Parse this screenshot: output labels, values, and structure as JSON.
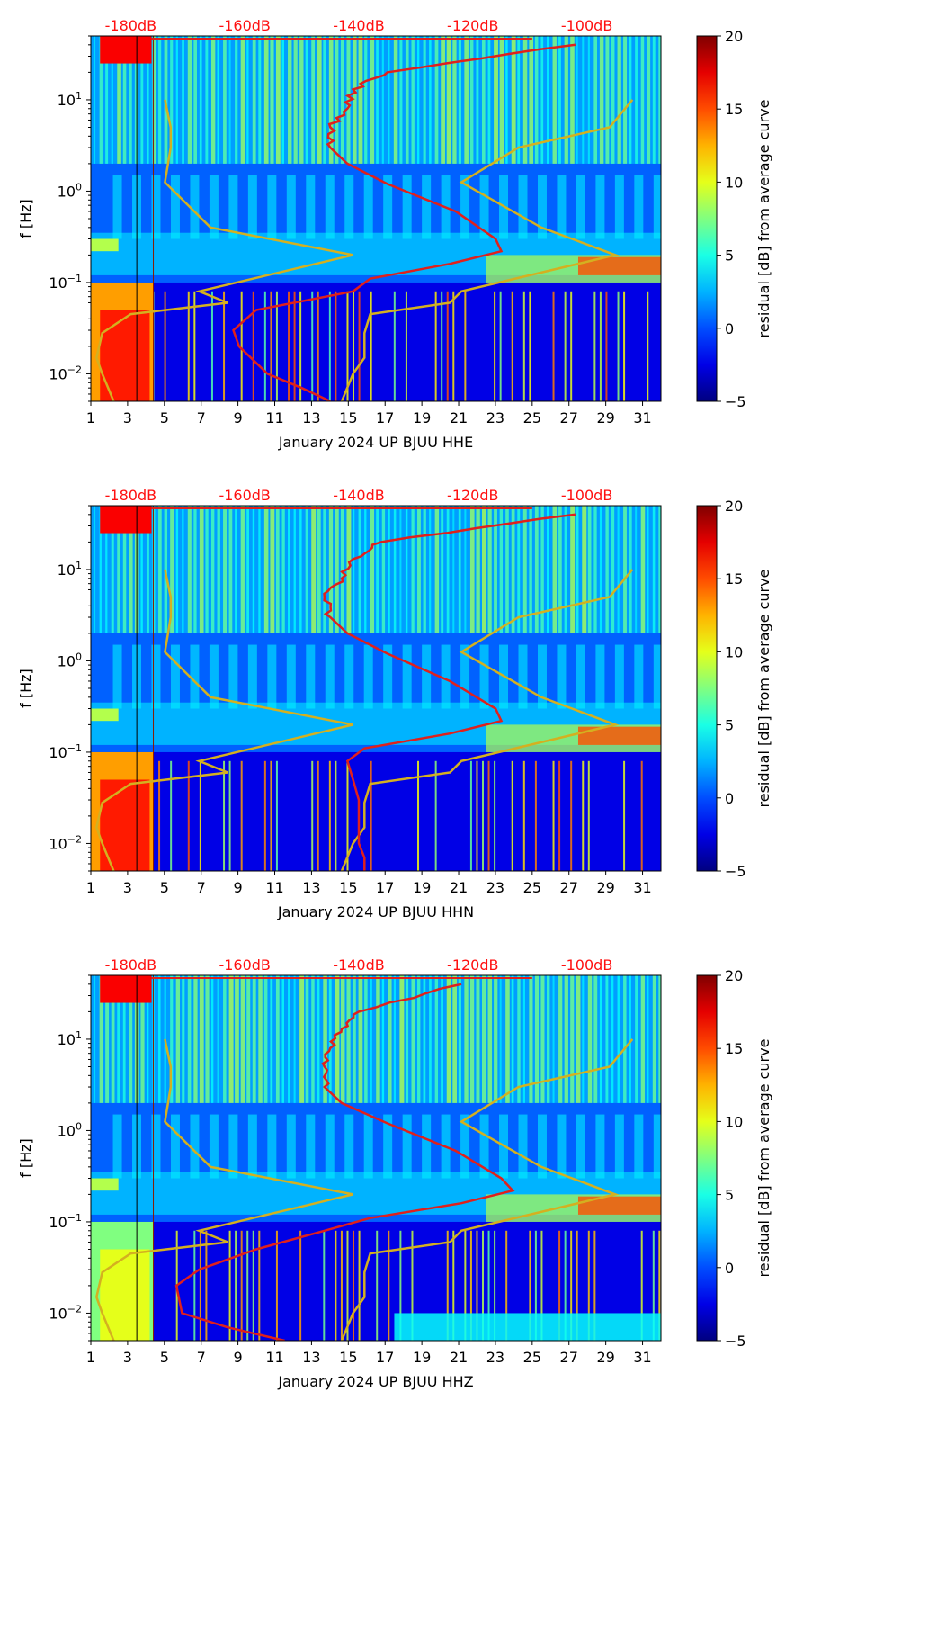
{
  "colors": {
    "model_line": "#d4b020",
    "median_line": "#e0201c",
    "top_labels": "#ff1010",
    "vline": "#8b1a00"
  },
  "colorbar": {
    "label": "residual [dB] from average curve",
    "ticks": [
      "20",
      "15",
      "10",
      "5",
      "0",
      "−5"
    ],
    "range": [
      -5,
      20
    ],
    "colormap": "jet"
  },
  "chart_data": [
    {
      "type": "heatmap",
      "title": "",
      "xlabel": "January 2024 UP BJUU  HHE",
      "ylabel": "f [Hz]",
      "x_ticks": [
        "1",
        "3",
        "5",
        "7",
        "9",
        "11",
        "13",
        "15",
        "17",
        "19",
        "21",
        "23",
        "25",
        "27",
        "29",
        "31"
      ],
      "x_range": [
        1,
        32
      ],
      "y_scale": "log",
      "y_range": [
        0.005,
        50
      ],
      "y_ticks": [
        {
          "base": "10",
          "exp": "1"
        },
        {
          "base": "10",
          "exp": "0"
        },
        {
          "base": "10",
          "exp": "−1"
        },
        {
          "base": "10",
          "exp": "−2"
        }
      ],
      "top_axis_labels": [
        "-180dB",
        "-160dB",
        "-140dB",
        "-120dB",
        "-100dB"
      ],
      "top_axis_db": [
        -180,
        -160,
        -140,
        -120,
        -100
      ],
      "db_range": [
        -187,
        -87
      ],
      "series": [
        {
          "name": "noise model bounds (dB)",
          "freqs": [
            10,
            5,
            3,
            1.25,
            0.4,
            0.2,
            0.08,
            0.06,
            0.045,
            0.028,
            0.015,
            0.01,
            0.005
          ],
          "left_db": [
            -174,
            -173,
            -173,
            -174,
            -166,
            -141,
            -168,
            -163,
            -180,
            -185,
            -186,
            -185,
            -183
          ],
          "right_db": [
            -92,
            -96,
            -112,
            -122,
            -108,
            -95,
            -122,
            -124,
            -138,
            -139,
            -139,
            -141,
            -143
          ]
        },
        {
          "name": "median PSD (dB)",
          "freqs": [
            40,
            20,
            13,
            8,
            5,
            3,
            2,
            1.2,
            0.6,
            0.3,
            0.22,
            0.16,
            0.11,
            0.08,
            0.05,
            0.03,
            0.02,
            0.01,
            0.007,
            0.005
          ],
          "db": [
            -102,
            -135,
            -141,
            -142,
            -145,
            -145,
            -142,
            -135,
            -123,
            -116,
            -115,
            -124,
            -138,
            -141,
            -158,
            -162,
            -161,
            -156,
            -150,
            -145
          ]
        }
      ]
    },
    {
      "type": "heatmap",
      "title": "",
      "xlabel": "January 2024 UP BJUU  HHN",
      "ylabel": "f [Hz]",
      "x_ticks": [
        "1",
        "3",
        "5",
        "7",
        "9",
        "11",
        "13",
        "15",
        "17",
        "19",
        "21",
        "23",
        "25",
        "27",
        "29",
        "31"
      ],
      "x_range": [
        1,
        32
      ],
      "y_scale": "log",
      "y_range": [
        0.005,
        50
      ],
      "y_ticks": [
        {
          "base": "10",
          "exp": "1"
        },
        {
          "base": "10",
          "exp": "0"
        },
        {
          "base": "10",
          "exp": "−1"
        },
        {
          "base": "10",
          "exp": "−2"
        }
      ],
      "top_axis_labels": [
        "-180dB",
        "-160dB",
        "-140dB",
        "-120dB",
        "-100dB"
      ],
      "top_axis_db": [
        -180,
        -160,
        -140,
        -120,
        -100
      ],
      "db_range": [
        -187,
        -87
      ],
      "series": [
        {
          "name": "noise model bounds (dB)",
          "freqs": [
            10,
            5,
            3,
            1.25,
            0.4,
            0.2,
            0.08,
            0.06,
            0.045,
            0.028,
            0.015,
            0.01,
            0.005
          ],
          "left_db": [
            -174,
            -173,
            -173,
            -174,
            -166,
            -141,
            -168,
            -163,
            -180,
            -185,
            -186,
            -185,
            -183
          ],
          "right_db": [
            -92,
            -96,
            -112,
            -122,
            -108,
            -95,
            -122,
            -124,
            -138,
            -139,
            -139,
            -141,
            -143
          ]
        },
        {
          "name": "median PSD (dB)",
          "freqs": [
            40,
            20,
            13,
            8,
            5,
            3,
            2,
            1.2,
            0.6,
            0.3,
            0.22,
            0.16,
            0.11,
            0.08,
            0.05,
            0.03,
            0.02,
            0.01,
            0.007,
            0.005
          ],
          "db": [
            -102,
            -136,
            -141,
            -143,
            -146,
            -145,
            -142,
            -135,
            -124,
            -116,
            -115,
            -124,
            -139,
            -142,
            -141,
            -140,
            -140,
            -140,
            -139,
            -139
          ]
        }
      ]
    },
    {
      "type": "heatmap",
      "title": "",
      "xlabel": "January 2024 UP BJUU  HHZ",
      "ylabel": "f [Hz]",
      "x_ticks": [
        "1",
        "3",
        "5",
        "7",
        "9",
        "11",
        "13",
        "15",
        "17",
        "19",
        "21",
        "23",
        "25",
        "27",
        "29",
        "31"
      ],
      "x_range": [
        1,
        32
      ],
      "y_scale": "log",
      "y_range": [
        0.005,
        50
      ],
      "y_ticks": [
        {
          "base": "10",
          "exp": "1"
        },
        {
          "base": "10",
          "exp": "0"
        },
        {
          "base": "10",
          "exp": "−1"
        },
        {
          "base": "10",
          "exp": "−2"
        }
      ],
      "top_axis_labels": [
        "-180dB",
        "-160dB",
        "-140dB",
        "-120dB",
        "-100dB"
      ],
      "top_axis_db": [
        -180,
        -160,
        -140,
        -120,
        -100
      ],
      "db_range": [
        -187,
        -87
      ],
      "series": [
        {
          "name": "noise model bounds (dB)",
          "freqs": [
            10,
            5,
            3,
            1.25,
            0.4,
            0.2,
            0.08,
            0.06,
            0.045,
            0.028,
            0.015,
            0.01,
            0.005
          ],
          "left_db": [
            -174,
            -173,
            -173,
            -174,
            -166,
            -141,
            -168,
            -163,
            -180,
            -185,
            -186,
            -185,
            -183
          ],
          "right_db": [
            -92,
            -96,
            -112,
            -122,
            -108,
            -95,
            -122,
            -124,
            -138,
            -139,
            -139,
            -141,
            -143
          ]
        },
        {
          "name": "median PSD (dB)",
          "freqs": [
            40,
            20,
            13,
            8,
            5,
            3,
            2,
            1.2,
            0.6,
            0.3,
            0.22,
            0.16,
            0.11,
            0.08,
            0.05,
            0.03,
            0.02,
            0.01,
            0.007,
            0.005
          ],
          "db": [
            -122,
            -140,
            -143,
            -145,
            -146,
            -146,
            -143,
            -135,
            -123,
            -115,
            -113,
            -122,
            -138,
            -146,
            -158,
            -168,
            -172,
            -171,
            -163,
            -153
          ]
        }
      ]
    }
  ]
}
